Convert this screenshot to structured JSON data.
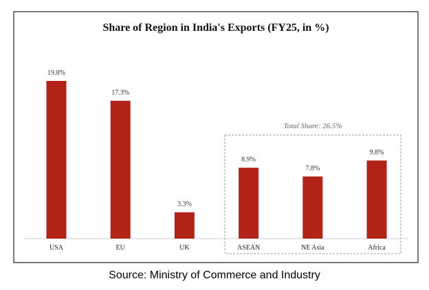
{
  "chart_data": {
    "type": "bar",
    "title": "Share of Region in India's Exports (FY25, in %)",
    "categories": [
      "USA",
      "EU",
      "UK",
      "ASEAN",
      "NE Asia",
      "Africa"
    ],
    "values": [
      19.8,
      17.3,
      3.3,
      8.9,
      7.8,
      9.8
    ],
    "data_labels": [
      "19.8%",
      "17.3%",
      "3.3%",
      "8.9%",
      "7.8%",
      "9.8%"
    ],
    "xlabel": "",
    "ylabel": "",
    "grid": false,
    "bar_color": "#b22219",
    "annotation": {
      "text": "Total Share: 26.5%",
      "group": [
        "ASEAN",
        "NE Asia",
        "Africa"
      ]
    }
  },
  "source": "Source: Ministry of Commerce and Industry"
}
